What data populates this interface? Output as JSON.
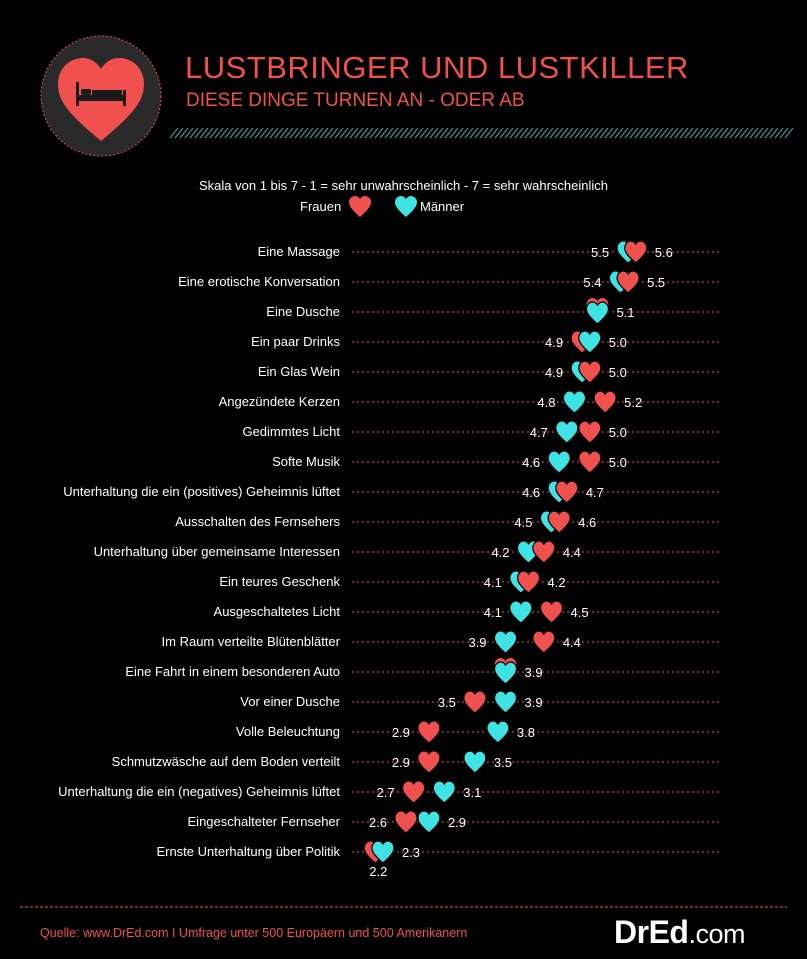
{
  "header": {
    "title": "LUSTBRINGER UND LUSTKILLER",
    "subtitle": "DIESE DINGE TURNEN AN - ODER AB"
  },
  "scale_note": "Skala von 1 bis 7 - 1 = sehr unwahrscheinlich  - 7 = sehr wahrscheinlich",
  "legend": {
    "women": "Frauen",
    "men": "Männer"
  },
  "colors": {
    "women": "#f0514f",
    "men": "#40e3e3",
    "background": "#000000"
  },
  "footer": {
    "source": "Quelle: www.DrEd.com I Umfrage unter 500 Europäern und 500 Amerikanern",
    "brand_main": "DrEd",
    "brand_suffix": ".com"
  },
  "chart_data": {
    "type": "dot",
    "scale": [
      1,
      7
    ],
    "series": [
      {
        "name": "Frauen",
        "color": "#f0514f"
      },
      {
        "name": "Männer",
        "color": "#40e3e3"
      }
    ],
    "items": [
      {
        "label": "Eine Massage",
        "women": 5.6,
        "men": 5.5
      },
      {
        "label": "Eine erotische Konversation",
        "women": 5.5,
        "men": 5.4
      },
      {
        "label": "Eine Dusche",
        "women": 5.1,
        "men": 5.1
      },
      {
        "label": "Ein paar Drinks",
        "women": 4.9,
        "men": 5.0
      },
      {
        "label": "Ein Glas Wein",
        "women": 5.0,
        "men": 4.9
      },
      {
        "label": "Angezündete Kerzen",
        "women": 5.2,
        "men": 4.8
      },
      {
        "label": "Gedimmtes Licht",
        "women": 5.0,
        "men": 4.7
      },
      {
        "label": "Softe Musik",
        "women": 5.0,
        "men": 4.6
      },
      {
        "label": "Unterhaltung die ein (positives) Geheimnis lüftet",
        "women": 4.7,
        "men": 4.6
      },
      {
        "label": "Ausschalten des Fernsehers",
        "women": 4.6,
        "men": 4.5
      },
      {
        "label": "Unterhaltung über gemeinsame Interessen",
        "women": 4.4,
        "men": 4.2
      },
      {
        "label": "Ein teures Geschenk",
        "women": 4.2,
        "men": 4.1
      },
      {
        "label": "Ausgeschaltetes Licht",
        "women": 4.5,
        "men": 4.1
      },
      {
        "label": "Im Raum verteilte Blütenblätter",
        "women": 4.4,
        "men": 3.9
      },
      {
        "label": "Eine Fahrt in einem besonderen Auto",
        "women": 3.9,
        "men": 3.9
      },
      {
        "label": "Vor einer Dusche",
        "women": 3.5,
        "men": 3.9
      },
      {
        "label": "Volle Beleuchtung",
        "women": 2.9,
        "men": 3.8
      },
      {
        "label": "Schmutzwäsche auf dem Boden verteilt",
        "women": 2.9,
        "men": 3.5
      },
      {
        "label": "Unterhaltung die ein (negatives) Geheimnis lüftet",
        "women": 2.7,
        "men": 3.1
      },
      {
        "label": "Eingeschalteter Fernseher",
        "women": 2.6,
        "men": 2.9
      },
      {
        "label": "Ernste Unterhaltung über Politik",
        "women": 2.2,
        "men": 2.3
      }
    ]
  }
}
